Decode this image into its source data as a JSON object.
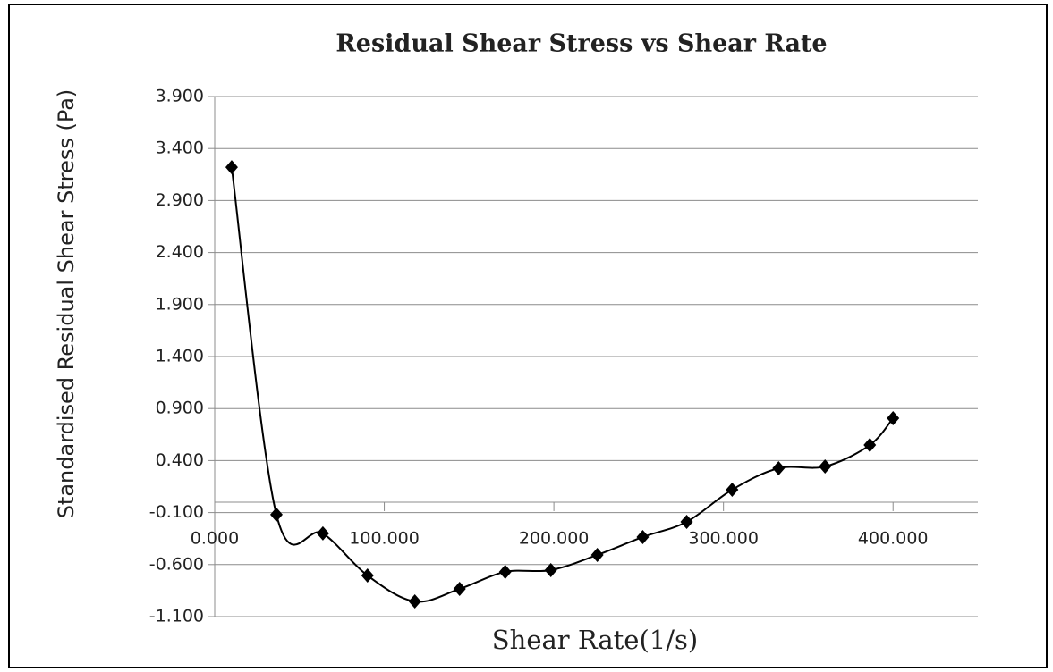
{
  "chart_data": {
    "type": "line",
    "title": "Residual Shear Stress vs Shear Rate",
    "x_label": "Shear Rate(1/s)",
    "y_label": "Standardised Residual Shear Stress (Pa)",
    "series": [
      {
        "color": "#000000",
        "x": [
          10.0,
          36.4,
          63.8,
          90.1,
          118.0,
          144.4,
          171.3,
          198.2,
          225.6,
          252.4,
          278.3,
          305.1,
          332.5,
          359.9,
          386.3,
          400.0
        ],
        "values": [
          3.22,
          -0.12,
          -0.3,
          -0.705,
          -0.954,
          -0.834,
          -0.67,
          -0.653,
          -0.507,
          -0.335,
          -0.189,
          0.12,
          0.326,
          0.343,
          0.549,
          0.807
        ]
      }
    ],
    "xlim": [
      0,
      450
    ],
    "xticks": [
      {
        "value": 0,
        "label": "0.000"
      },
      {
        "value": 100,
        "label": "100.000"
      },
      {
        "value": 200,
        "label": "200.000"
      },
      {
        "value": 300,
        "label": "300.000"
      },
      {
        "value": 400,
        "label": "400.000"
      }
    ],
    "ylim": [
      -1.1,
      3.9
    ],
    "yticks": [
      {
        "value": -1.1,
        "label": "-1.100"
      },
      {
        "value": -0.6,
        "label": "-0.600"
      },
      {
        "value": -0.1,
        "label": "-0.100"
      },
      {
        "value": 0.4,
        "label": "0.400"
      },
      {
        "value": 0.9,
        "label": "0.900"
      },
      {
        "value": 1.4,
        "label": "1.400"
      },
      {
        "value": 1.9,
        "label": "1.900"
      },
      {
        "value": 2.4,
        "label": "2.400"
      },
      {
        "value": 2.9,
        "label": "2.900"
      },
      {
        "value": 3.4,
        "label": "3.400"
      },
      {
        "value": 3.9,
        "label": "3.900"
      }
    ],
    "grid": true,
    "smooth": true
  }
}
